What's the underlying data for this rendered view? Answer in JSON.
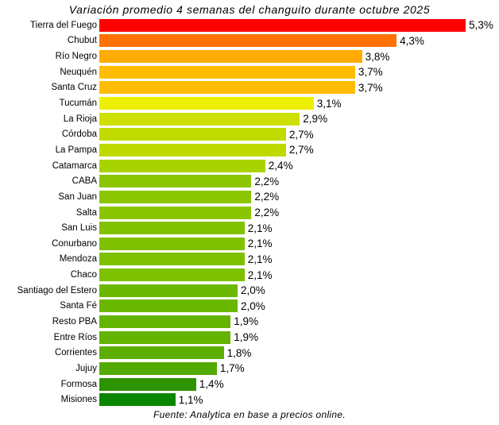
{
  "title": "Variación promedio 4 semanas del changuito durante octubre 2025",
  "footer": "Fuente: Analytica en base a precios online.",
  "chart_data": {
    "type": "bar",
    "orientation": "horizontal",
    "title": "Variación promedio 4 semanas del changuito durante octubre 2025",
    "source_note": "Fuente: Analytica en base a precios online.",
    "unit": "%",
    "xlim": [
      0,
      5.5
    ],
    "grid": false,
    "legend": "none",
    "sort": "descending",
    "color_scale": "red-yellow-green, high value = red, low value = dark green",
    "categories": [
      "Tierra del Fuego",
      "Chubut",
      "Río Negro",
      "Neuquén",
      "Santa Cruz",
      "Tucumán",
      "La Rioja",
      "Córdoba",
      "La Pampa",
      "Catamarca",
      "CABA",
      "San Juan",
      "Salta",
      "San Luis",
      "Conurbano",
      "Mendoza",
      "Chaco",
      "Santiago del Estero",
      "Santa Fé",
      "Resto PBA",
      "Entre Ríos",
      "Corrientes",
      "Jujuy",
      "Formosa",
      "Misiones"
    ],
    "values": [
      5.3,
      4.3,
      3.8,
      3.7,
      3.7,
      3.1,
      2.9,
      2.7,
      2.7,
      2.4,
      2.2,
      2.2,
      2.2,
      2.1,
      2.1,
      2.1,
      2.1,
      2.0,
      2.0,
      1.9,
      1.9,
      1.8,
      1.7,
      1.4,
      1.1
    ],
    "value_labels": [
      "5,3%",
      "4,3%",
      "3,8%",
      "3,7%",
      "3,7%",
      "3,1%",
      "2,9%",
      "2,7%",
      "2,7%",
      "2,4%",
      "2,2%",
      "2,2%",
      "2,2%",
      "2,1%",
      "2,1%",
      "2,1%",
      "2,1%",
      "2,0%",
      "2,0%",
      "1,9%",
      "1,9%",
      "1,8%",
      "1,7%",
      "1,4%",
      "1,1%"
    ],
    "bar_colors": [
      "#FF0000",
      "#FF7100",
      "#FFAC00",
      "#FFBC00",
      "#FFBC00",
      "#EEEF00",
      "#CFE000",
      "#C1DB00",
      "#BEDA00",
      "#A9D300",
      "#8BC600",
      "#8BC600",
      "#8AC500",
      "#80C100",
      "#7FC100",
      "#7EC000",
      "#7DC000",
      "#6CB800",
      "#6BB800",
      "#64B400",
      "#63B300",
      "#5CAF00",
      "#53AA00",
      "#2D9300",
      "#0A8600"
    ]
  }
}
